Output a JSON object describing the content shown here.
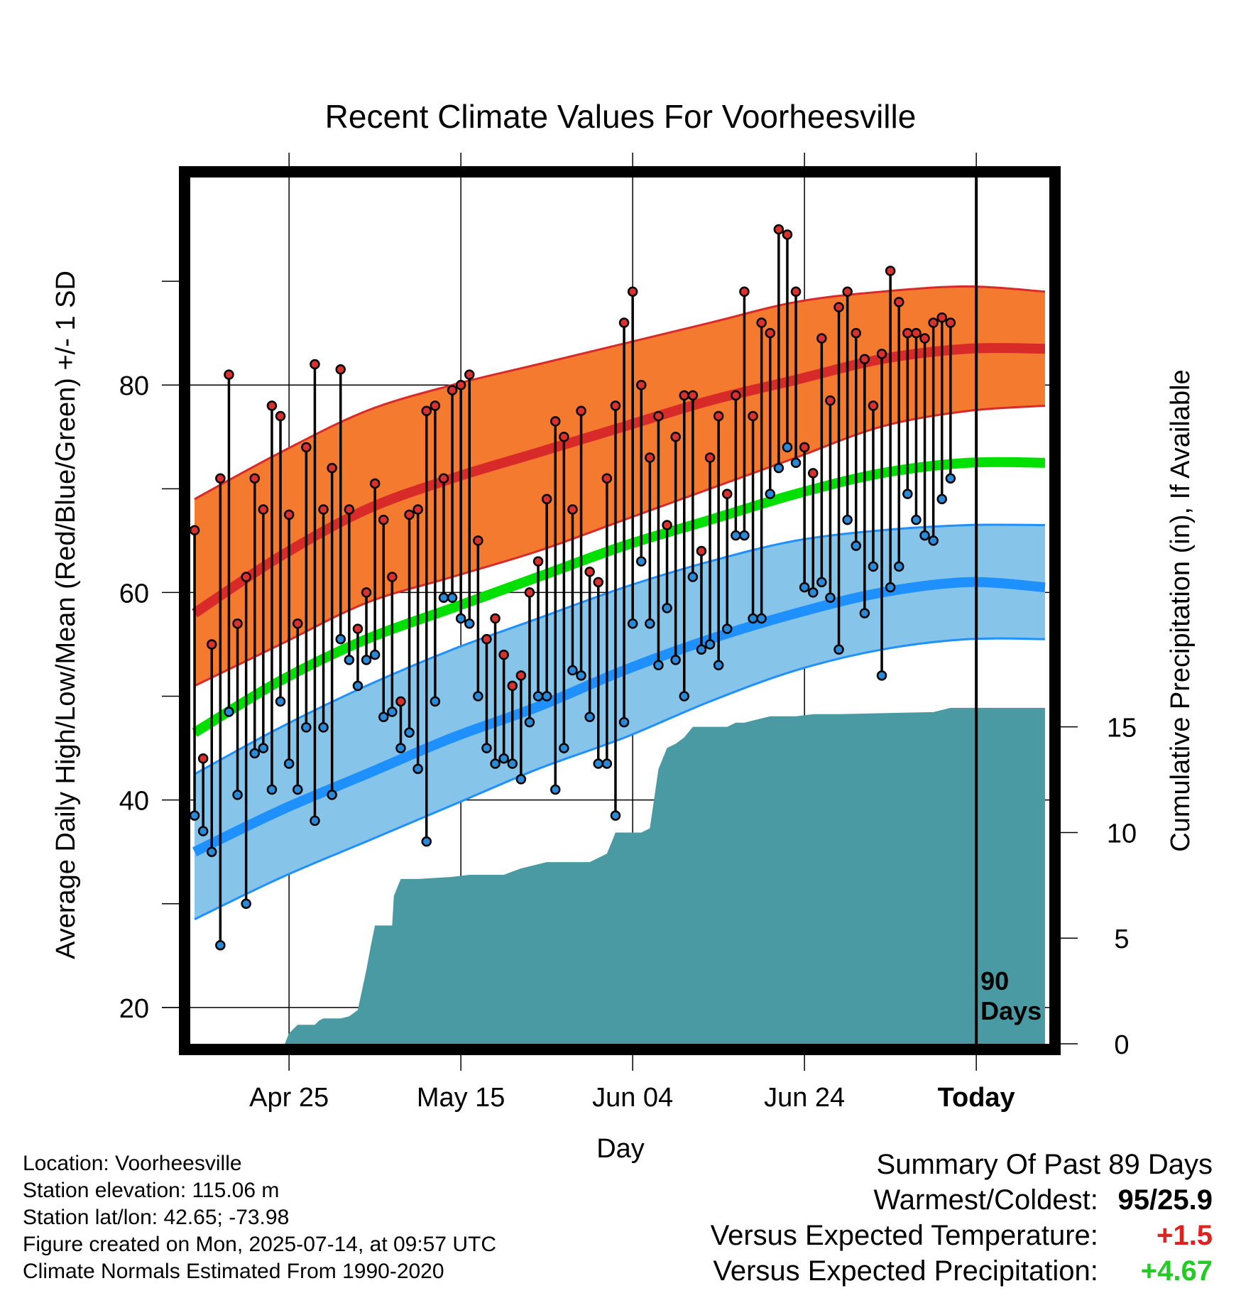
{
  "chart_data": {
    "type": "line",
    "title": "Recent Climate Values For Voorheesville",
    "xlabel": "Day",
    "ylabel_left": "Average Daily High/Low/Mean (Red/Blue/Green) +/- 1 SD",
    "ylabel_right": "Cumulative Precipitation (in), If Available",
    "x_ticks": [
      {
        "day": 11,
        "label": "Apr 25"
      },
      {
        "day": 31,
        "label": "May 15"
      },
      {
        "day": 51,
        "label": "Jun 04"
      },
      {
        "day": 71,
        "label": "Jun 24"
      },
      {
        "day": 91,
        "label": "Today"
      }
    ],
    "xlim": [
      -0.5,
      99.5
    ],
    "y_left_ticks": [
      20,
      40,
      60,
      80
    ],
    "y_left_lim": [
      16.5,
      100
    ],
    "y_right_ticks": [
      0,
      5,
      10,
      15
    ],
    "y_right_lim": [
      0,
      41.0
    ],
    "today_day": 91,
    "today_label_line1": "90",
    "today_label_line2": "Days",
    "colors": {
      "high_band": "#f47a30",
      "high_mean": "#d92a2a",
      "low_band": "#86c4ea",
      "low_mean": "#1e90ff",
      "mean_temp": "#00e000",
      "precip": "#4a9aa4",
      "high_dot": "#d93030",
      "low_dot": "#2a8ad8"
    },
    "normals": {
      "days": [
        0,
        10,
        20,
        30,
        40,
        50,
        60,
        70,
        80,
        90,
        99
      ],
      "high_mean": [
        58,
        63.5,
        68,
        71,
        73.5,
        76,
        78.5,
        80.5,
        82.5,
        83.5,
        83.5
      ],
      "high_upper": [
        69,
        73.5,
        77.5,
        80,
        82,
        84,
        86,
        88,
        89,
        89.5,
        89
      ],
      "high_lower": [
        51,
        55,
        59,
        61.5,
        64,
        67,
        70,
        73,
        76,
        77.5,
        78
      ],
      "mean_temp": [
        46.5,
        51.5,
        55.5,
        58.5,
        61.5,
        64.5,
        67,
        69.5,
        71.5,
        72.5,
        72.5
      ],
      "low_mean": [
        35,
        39,
        42.5,
        46,
        49,
        52.5,
        55.5,
        58,
        60,
        61,
        60.5
      ],
      "low_upper": [
        42.5,
        47,
        51,
        54.5,
        57.5,
        60.5,
        63,
        65,
        66,
        66.5,
        66.5
      ],
      "low_lower": [
        28.5,
        32.5,
        36,
        39.5,
        43,
        46,
        49.5,
        52.5,
        54.5,
        55.5,
        55.5
      ]
    },
    "series": [
      {
        "name": "Daily High",
        "values": [
          66,
          44,
          55,
          71,
          81,
          57,
          61.5,
          71,
          68,
          78,
          77,
          67.5,
          57,
          74,
          82,
          68,
          72,
          81.5,
          68,
          56.5,
          60,
          70.5,
          67,
          61.5,
          49.5,
          67.5,
          68,
          77.5,
          78,
          71,
          79.5,
          80,
          81,
          65,
          55.5,
          57.5,
          54,
          51,
          52,
          60,
          63,
          69,
          76.5,
          75,
          68,
          77.5,
          62,
          61,
          71,
          78,
          86,
          89,
          80,
          73,
          77,
          66.5,
          75,
          79,
          79,
          64,
          73,
          77,
          69.5,
          79,
          89,
          77,
          86,
          85,
          95,
          94.5,
          89,
          74,
          71.5,
          84.5,
          78.5,
          87.5,
          89,
          85,
          82.5,
          78,
          83,
          91,
          88,
          85,
          85,
          84.5,
          86,
          86.5,
          86
        ]
      },
      {
        "name": "Daily Low",
        "values": [
          38.5,
          37,
          35,
          26,
          48.5,
          40.5,
          30,
          44.5,
          45,
          41,
          49.5,
          43.5,
          41,
          47,
          38,
          47,
          40.5,
          55.5,
          53.5,
          51,
          53.5,
          54,
          48,
          48.5,
          45,
          46.5,
          43,
          36,
          49.5,
          59.5,
          59.5,
          57.5,
          57,
          50,
          45,
          43.5,
          44,
          43.5,
          42,
          47.5,
          50,
          50,
          41,
          45,
          52.5,
          52,
          48,
          43.5,
          43.5,
          38.5,
          47.5,
          57,
          63,
          57,
          53,
          58.5,
          53.5,
          50,
          61.5,
          54.5,
          55,
          53,
          56.5,
          65.5,
          65.5,
          57.5,
          57.5,
          69.5,
          72,
          74,
          72.5,
          60.5,
          60,
          61,
          59.5,
          54.5,
          67,
          64.5,
          58,
          62.5,
          52,
          60.5,
          62.5,
          69.5,
          67,
          65.5,
          65,
          69,
          71
        ]
      }
    ],
    "precip": {
      "days": [
        10.5,
        11,
        12,
        13,
        14,
        14.5,
        15,
        16,
        17,
        18,
        19,
        20,
        20.5,
        21,
        22,
        23,
        23.2,
        24,
        24.6,
        25,
        26,
        30,
        32,
        34,
        36,
        38,
        40,
        41,
        42,
        44,
        45,
        45.5,
        46,
        48,
        49,
        50,
        51,
        51.5,
        52,
        53,
        54,
        55,
        56,
        57,
        58,
        59,
        60,
        62,
        63,
        64,
        66,
        67,
        70,
        72,
        75,
        80,
        86,
        87,
        88,
        99
      ],
      "values": [
        0,
        0.5,
        0.9,
        0.9,
        0.9,
        1.1,
        1.2,
        1.2,
        1.2,
        1.3,
        1.6,
        3.5,
        4.6,
        5.6,
        5.6,
        5.6,
        7.0,
        7.8,
        7.8,
        7.8,
        7.8,
        7.9,
        8.0,
        8.0,
        8.0,
        8.3,
        8.5,
        8.6,
        8.6,
        8.6,
        8.6,
        8.6,
        8.6,
        9.0,
        10.0,
        10.0,
        10.0,
        10.0,
        10.0,
        10.2,
        13.0,
        14.0,
        14.2,
        14.5,
        15.0,
        15.0,
        15.0,
        15.0,
        15.2,
        15.2,
        15.4,
        15.5,
        15.5,
        15.6,
        15.6,
        15.65,
        15.7,
        15.8,
        15.9,
        15.9
      ]
    }
  },
  "footer": {
    "location": "Location: Voorheesville",
    "elevation": "Station elevation: 115.06 m",
    "latlon": "Station lat/lon: 42.65; -73.98",
    "created": "Figure created on Mon, 2025-07-14, at 09:57 UTC",
    "normals": "Climate Normals Estimated From 1990-2020"
  },
  "summary": {
    "title": "Summary Of Past 89 Days",
    "warm_cold_label": "Warmest/Coldest:",
    "warm_cold_value": "95/25.9",
    "temp_label": "Versus Expected Temperature:",
    "temp_value": "+1.5",
    "temp_color": "#dd2222",
    "precip_label": "Versus Expected Precipitation:",
    "precip_value": "+4.67",
    "precip_color": "#22cc22"
  }
}
